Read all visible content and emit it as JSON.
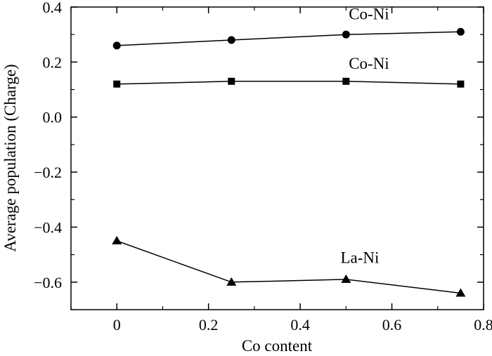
{
  "chart_data": {
    "type": "line",
    "title": "",
    "xlabel": "Co content",
    "ylabel": "Average population (Charge)",
    "xlim": [
      -0.1,
      0.8
    ],
    "ylim": [
      -0.7,
      0.4
    ],
    "x_ticks": [
      {
        "value": 0,
        "label": "0"
      },
      {
        "value": 0.2,
        "label": "0.2"
      },
      {
        "value": 0.4,
        "label": "0.4"
      },
      {
        "value": 0.6,
        "label": "0.6"
      },
      {
        "value": 0.8,
        "label": "0.8"
      }
    ],
    "y_ticks": [
      {
        "value": 0.4,
        "label": "0.4"
      },
      {
        "value": 0.2,
        "label": "0.2"
      },
      {
        "value": 0.0,
        "label": "0.0"
      },
      {
        "value": -0.2,
        "label": "−0.2"
      },
      {
        "value": -0.4,
        "label": "−0.4"
      },
      {
        "value": -0.6,
        "label": "−0.6"
      }
    ],
    "grid": false,
    "series": [
      {
        "name": "Co-Ni",
        "marker": "circle",
        "color": "#000000",
        "x": [
          0,
          0.25,
          0.5,
          0.75
        ],
        "values": [
          0.26,
          0.28,
          0.3,
          0.31
        ]
      },
      {
        "name": "Co-Ni",
        "marker": "square",
        "color": "#000000",
        "x": [
          0,
          0.25,
          0.5,
          0.75
        ],
        "values": [
          0.12,
          0.13,
          0.13,
          0.12
        ]
      },
      {
        "name": "La-Ni",
        "marker": "triangle",
        "color": "#000000",
        "x": [
          0,
          0.25,
          0.5,
          0.75
        ],
        "values": [
          -0.45,
          -0.6,
          -0.59,
          -0.64
        ]
      }
    ],
    "annotations": [
      {
        "text": "Co-Ni",
        "x": 0.55,
        "y": 0.355
      },
      {
        "text": "Co-Ni",
        "x": 0.55,
        "y": 0.175
      },
      {
        "text": "La-Ni",
        "x": 0.53,
        "y": -0.53
      }
    ]
  }
}
